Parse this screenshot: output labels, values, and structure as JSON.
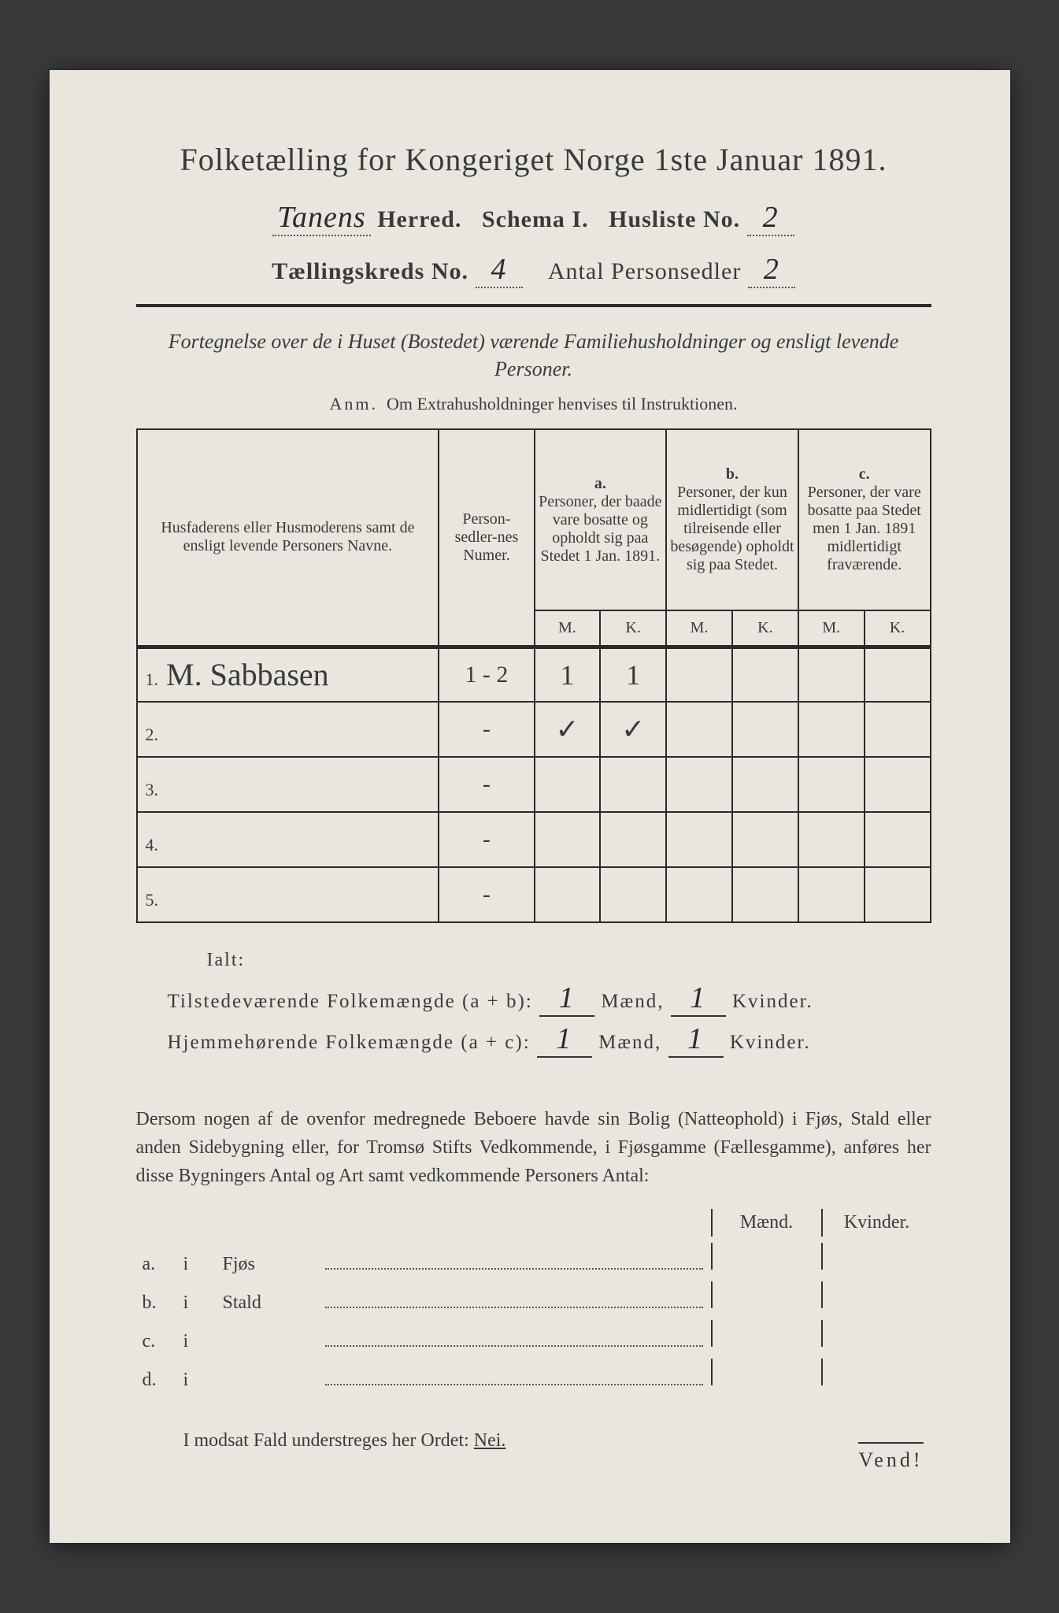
{
  "colors": {
    "page_bg": "#e8e6de",
    "outer_bg": "#3a3a3c",
    "ink": "#3a3a38",
    "rule": "#2a2a28"
  },
  "title": "Folketælling for Kongeriget Norge 1ste Januar 1891.",
  "line2": {
    "herred_value": "Tanens",
    "herred_label": "Herred.",
    "schema_label": "Schema I.",
    "husliste_label": "Husliste No.",
    "husliste_value": "2"
  },
  "line3": {
    "kreds_label": "Tællingskreds No.",
    "kreds_value": "4",
    "antal_label": "Antal Personsedler",
    "antal_value": "2"
  },
  "subtitle": "Fortegnelse over de i Huset (Bostedet) værende Familiehusholdninger og ensligt levende Personer.",
  "anm": {
    "prefix": "Anm.",
    "text": "Om Extrahusholdninger henvises til Instruktionen."
  },
  "table": {
    "headers": {
      "name": "Husfaderens eller Husmoderens samt de ensligt levende Personers Navne.",
      "num": "Person-sedler-nes Numer.",
      "a": {
        "tag": "a.",
        "text": "Personer, der baade vare bosatte og opholdt sig paa Stedet 1 Jan. 1891."
      },
      "b": {
        "tag": "b.",
        "text": "Personer, der kun midlertidigt (som tilreisende eller besøgende) opholdt sig paa Stedet."
      },
      "c": {
        "tag": "c.",
        "text": "Personer, der vare bosatte paa Stedet men 1 Jan. 1891 midlertidigt fraværende."
      },
      "M": "M.",
      "K": "K."
    },
    "rows": [
      {
        "n": "1.",
        "name": "M. Sabbasen",
        "num": "1 - 2",
        "aM": "1",
        "aK": "1",
        "bM": "",
        "bK": "",
        "cM": "",
        "cK": ""
      },
      {
        "n": "2.",
        "name": "",
        "num": "-",
        "aM": "✓",
        "aK": "✓",
        "bM": "",
        "bK": "",
        "cM": "",
        "cK": ""
      },
      {
        "n": "3.",
        "name": "",
        "num": "-",
        "aM": "",
        "aK": "",
        "bM": "",
        "bK": "",
        "cM": "",
        "cK": ""
      },
      {
        "n": "4.",
        "name": "",
        "num": "-",
        "aM": "",
        "aK": "",
        "bM": "",
        "bK": "",
        "cM": "",
        "cK": ""
      },
      {
        "n": "5.",
        "name": "",
        "num": "-",
        "aM": "",
        "aK": "",
        "bM": "",
        "bK": "",
        "cM": "",
        "cK": ""
      }
    ]
  },
  "totals": {
    "ialt": "Ialt:",
    "present": {
      "label": "Tilstedeværende Folkemængde (a + b):",
      "m": "1",
      "k": "1",
      "maend": "Mænd,",
      "kvinder": "Kvinder."
    },
    "home": {
      "label": "Hjemmehørende Folkemængde (a + c):",
      "m": "1",
      "k": "1",
      "maend": "Mænd,",
      "kvinder": "Kvinder."
    }
  },
  "paragraph": "Dersom nogen af de ovenfor medregnede Beboere havde sin Bolig (Natteophold) i Fjøs, Stald eller anden Sidebygning eller, for Tromsø Stifts Vedkommende, i Fjøsgamme (Fællesgamme), anføres her disse Bygningers Antal og Art samt vedkommende Personers Antal:",
  "mk": {
    "maend": "Mænd.",
    "kvinder": "Kvinder."
  },
  "buildings": [
    {
      "pre": "a.",
      "i": "i",
      "name": "Fjøs"
    },
    {
      "pre": "b.",
      "i": "i",
      "name": "Stald"
    },
    {
      "pre": "c.",
      "i": "i",
      "name": ""
    },
    {
      "pre": "d.",
      "i": "i",
      "name": ""
    }
  ],
  "nei": {
    "text": "I modsat Fald understreges her Ordet:",
    "word": "Nei."
  },
  "vend": "Vend!"
}
